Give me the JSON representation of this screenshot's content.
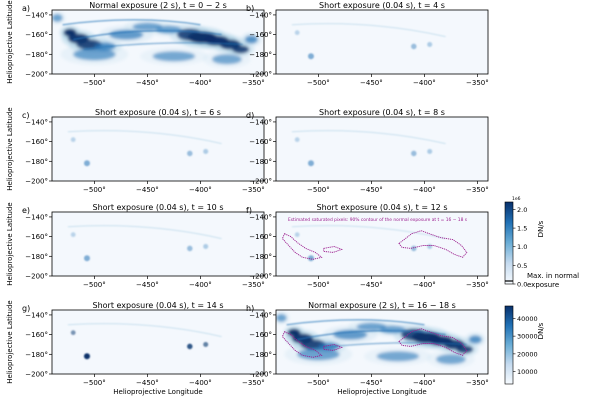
{
  "chart_data": {
    "type": "heatmap",
    "xlabel": "Helioprojective Longitude",
    "ylabel": "Helioprojective Latitude",
    "xlim": [
      -540,
      -340
    ],
    "ylim": [
      -200,
      -135
    ],
    "x_ticks": [
      -500,
      -450,
      -400,
      -350
    ],
    "y_ticks": [
      -140,
      -160,
      -180,
      -200
    ],
    "x_tick_labels": [
      "−500°",
      "−450°",
      "−400°",
      "−350°"
    ],
    "y_tick_labels": [
      "−140°",
      "−160°",
      "−180°",
      "−200°"
    ],
    "panels": [
      {
        "letter": "a)",
        "title": "Normal exposure (2 s), t = 0 − 2 s",
        "intensity": "high",
        "contour": false
      },
      {
        "letter": "b)",
        "title": "Short exposure (0.04 s), t = 4 s",
        "intensity": "low",
        "contour": false
      },
      {
        "letter": "c)",
        "title": "Short exposure (0.04 s), t = 6 s",
        "intensity": "low",
        "contour": false
      },
      {
        "letter": "d)",
        "title": "Short exposure (0.04 s), t = 8 s",
        "intensity": "low",
        "contour": false
      },
      {
        "letter": "e)",
        "title": "Short exposure (0.04 s), t = 10 s",
        "intensity": "low",
        "contour": false
      },
      {
        "letter": "f)",
        "title": "Short exposure (0.04 s), t = 12 s",
        "intensity": "low",
        "contour": true,
        "annotation": "Estimated saturated pixels: 90% contour of the normal exposure at t = 16 − 18 s"
      },
      {
        "letter": "g)",
        "title": "Short exposure (0.04 s), t = 14 s",
        "intensity": "medium",
        "contour": false
      },
      {
        "letter": "h)",
        "title": "Normal exposure (2 s), t = 16 − 18 s",
        "intensity": "high",
        "contour": true
      }
    ],
    "colorbars": [
      {
        "name": "short-exposure-colorbar",
        "label": "DN/s",
        "scale_exponent": "1e6",
        "ticks": [
          0.0,
          0.5,
          1.0,
          1.5,
          2.0
        ],
        "tick_labels": [
          "0.0",
          "0.5",
          "1.0",
          "1.5",
          "2.0"
        ],
        "range": [
          0,
          2.2
        ],
        "extra_label": "Max. in normal exposure"
      },
      {
        "name": "normal-exposure-colorbar",
        "label": "DN/s",
        "ticks": [
          10000,
          20000,
          30000,
          40000
        ],
        "tick_labels": [
          "10000",
          "20000",
          "30000",
          "40000"
        ],
        "range": [
          3000,
          47000
        ]
      }
    ],
    "colors": {
      "high": "#08306b",
      "mid": "#2171b5",
      "low": "#9ecae1",
      "bg": "#f4f8fd",
      "contour": "#9c1f8f"
    }
  }
}
